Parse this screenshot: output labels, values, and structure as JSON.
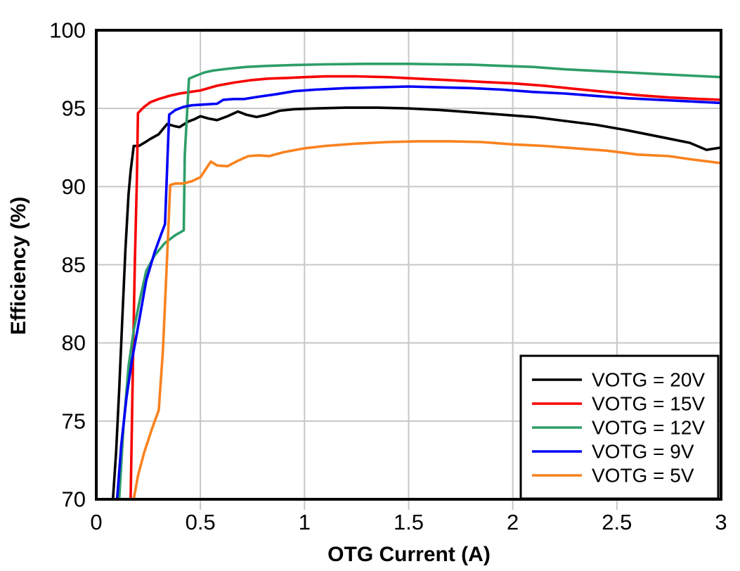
{
  "chart_data": {
    "type": "line",
    "title": "",
    "xlabel": "OTG Current (A)",
    "ylabel": "Efficiency (%)",
    "xlim": [
      0,
      3
    ],
    "ylim": [
      70,
      100
    ],
    "xticks": {
      "values": [
        0,
        0.5,
        1,
        1.5,
        2,
        2.5,
        3
      ],
      "labels": [
        "0",
        "0.5",
        "1",
        "1.5",
        "2",
        "2.5",
        "3"
      ]
    },
    "yticks": {
      "values": [
        70,
        75,
        80,
        85,
        90,
        95,
        100
      ],
      "labels": [
        "70",
        "75",
        "80",
        "85",
        "90",
        "95",
        "100"
      ]
    },
    "grid": true,
    "legend_position": "bottom-right",
    "style": {
      "background": "#FFFFFF",
      "frame_color": "#000000",
      "grid_color": "#C7C7C7",
      "tick_color": "#C7C7C7",
      "text_color": "#000000"
    },
    "series": [
      {
        "name": "VOTG = 20V",
        "color": "#000000",
        "points": [
          [
            0.08,
            70
          ],
          [
            0.095,
            73
          ],
          [
            0.11,
            77
          ],
          [
            0.125,
            81.5
          ],
          [
            0.14,
            86
          ],
          [
            0.155,
            89.5
          ],
          [
            0.165,
            91
          ],
          [
            0.18,
            92.6
          ],
          [
            0.205,
            92.6
          ],
          [
            0.23,
            92.8
          ],
          [
            0.26,
            93.05
          ],
          [
            0.3,
            93.35
          ],
          [
            0.34,
            94.0
          ],
          [
            0.38,
            93.85
          ],
          [
            0.4,
            93.8
          ],
          [
            0.44,
            94.15
          ],
          [
            0.47,
            94.3
          ],
          [
            0.5,
            94.5
          ],
          [
            0.54,
            94.35
          ],
          [
            0.58,
            94.25
          ],
          [
            0.63,
            94.5
          ],
          [
            0.68,
            94.8
          ],
          [
            0.72,
            94.6
          ],
          [
            0.77,
            94.45
          ],
          [
            0.82,
            94.6
          ],
          [
            0.88,
            94.85
          ],
          [
            0.95,
            94.95
          ],
          [
            1.05,
            95
          ],
          [
            1.2,
            95.05
          ],
          [
            1.35,
            95.05
          ],
          [
            1.5,
            95
          ],
          [
            1.65,
            94.9
          ],
          [
            1.8,
            94.75
          ],
          [
            1.95,
            94.6
          ],
          [
            2.1,
            94.45
          ],
          [
            2.25,
            94.2
          ],
          [
            2.4,
            93.95
          ],
          [
            2.55,
            93.6
          ],
          [
            2.7,
            93.2
          ],
          [
            2.85,
            92.8
          ],
          [
            2.93,
            92.35
          ],
          [
            3,
            92.5
          ]
        ]
      },
      {
        "name": "VOTG = 15V",
        "color": "#F70000",
        "points": [
          [
            0.165,
            70
          ],
          [
            0.175,
            78
          ],
          [
            0.185,
            85
          ],
          [
            0.195,
            90.5
          ],
          [
            0.2,
            94.7
          ],
          [
            0.23,
            95.1
          ],
          [
            0.26,
            95.4
          ],
          [
            0.3,
            95.6
          ],
          [
            0.35,
            95.8
          ],
          [
            0.4,
            95.95
          ],
          [
            0.45,
            96.05
          ],
          [
            0.5,
            96.15
          ],
          [
            0.58,
            96.45
          ],
          [
            0.66,
            96.65
          ],
          [
            0.74,
            96.8
          ],
          [
            0.82,
            96.9
          ],
          [
            0.92,
            96.95
          ],
          [
            1.0,
            97
          ],
          [
            1.1,
            97.05
          ],
          [
            1.25,
            97.05
          ],
          [
            1.4,
            97
          ],
          [
            1.55,
            96.9
          ],
          [
            1.7,
            96.8
          ],
          [
            1.85,
            96.7
          ],
          [
            2.0,
            96.6
          ],
          [
            2.15,
            96.45
          ],
          [
            2.3,
            96.25
          ],
          [
            2.45,
            96.05
          ],
          [
            2.6,
            95.85
          ],
          [
            2.75,
            95.7
          ],
          [
            2.9,
            95.6
          ],
          [
            3,
            95.55
          ]
        ]
      },
      {
        "name": "VOTG = 12V",
        "color": "#2D9E69",
        "points": [
          [
            0.11,
            70
          ],
          [
            0.13,
            74.5
          ],
          [
            0.155,
            78.5
          ],
          [
            0.18,
            80.8
          ],
          [
            0.21,
            82.8
          ],
          [
            0.24,
            84.6
          ],
          [
            0.28,
            85.6
          ],
          [
            0.33,
            86.4
          ],
          [
            0.38,
            86.9
          ],
          [
            0.42,
            87.2
          ],
          [
            0.425,
            92
          ],
          [
            0.445,
            96.9
          ],
          [
            0.48,
            97.1
          ],
          [
            0.52,
            97.3
          ],
          [
            0.56,
            97.42
          ],
          [
            0.64,
            97.55
          ],
          [
            0.72,
            97.65
          ],
          [
            0.82,
            97.72
          ],
          [
            0.95,
            97.78
          ],
          [
            1.1,
            97.82
          ],
          [
            1.3,
            97.85
          ],
          [
            1.5,
            97.85
          ],
          [
            1.65,
            97.82
          ],
          [
            1.8,
            97.8
          ],
          [
            1.95,
            97.72
          ],
          [
            2.1,
            97.65
          ],
          [
            2.25,
            97.5
          ],
          [
            2.4,
            97.4
          ],
          [
            2.55,
            97.3
          ],
          [
            2.7,
            97.2
          ],
          [
            2.85,
            97.1
          ],
          [
            3,
            97
          ]
        ]
      },
      {
        "name": "VOTG = 9V",
        "color": "#0000F5",
        "points": [
          [
            0.1,
            70
          ],
          [
            0.12,
            73.5
          ],
          [
            0.145,
            76.5
          ],
          [
            0.17,
            78.8
          ],
          [
            0.2,
            81
          ],
          [
            0.24,
            84
          ],
          [
            0.28,
            85.8
          ],
          [
            0.31,
            86.9
          ],
          [
            0.33,
            87.6
          ],
          [
            0.35,
            94.6
          ],
          [
            0.38,
            94.9
          ],
          [
            0.42,
            95.1
          ],
          [
            0.46,
            95.2
          ],
          [
            0.52,
            95.25
          ],
          [
            0.58,
            95.3
          ],
          [
            0.61,
            95.55
          ],
          [
            0.66,
            95.6
          ],
          [
            0.71,
            95.6
          ],
          [
            0.78,
            95.75
          ],
          [
            0.86,
            95.9
          ],
          [
            0.95,
            96.1
          ],
          [
            1.05,
            96.2
          ],
          [
            1.2,
            96.3
          ],
          [
            1.35,
            96.35
          ],
          [
            1.5,
            96.4
          ],
          [
            1.65,
            96.35
          ],
          [
            1.8,
            96.3
          ],
          [
            1.95,
            96.2
          ],
          [
            2.1,
            96.05
          ],
          [
            2.25,
            95.95
          ],
          [
            2.4,
            95.8
          ],
          [
            2.55,
            95.65
          ],
          [
            2.7,
            95.55
          ],
          [
            2.85,
            95.45
          ],
          [
            3,
            95.35
          ]
        ]
      },
      {
        "name": "VOTG = 5V",
        "color": "#F9821E",
        "points": [
          [
            0.18,
            70
          ],
          [
            0.2,
            71.5
          ],
          [
            0.23,
            73
          ],
          [
            0.27,
            74.6
          ],
          [
            0.3,
            75.7
          ],
          [
            0.32,
            79.5
          ],
          [
            0.34,
            85.5
          ],
          [
            0.355,
            90.1
          ],
          [
            0.38,
            90.2
          ],
          [
            0.42,
            90.2
          ],
          [
            0.46,
            90.35
          ],
          [
            0.5,
            90.6
          ],
          [
            0.55,
            91.6
          ],
          [
            0.58,
            91.35
          ],
          [
            0.63,
            91.3
          ],
          [
            0.68,
            91.65
          ],
          [
            0.73,
            91.95
          ],
          [
            0.78,
            92
          ],
          [
            0.83,
            91.95
          ],
          [
            0.9,
            92.2
          ],
          [
            1.0,
            92.45
          ],
          [
            1.1,
            92.6
          ],
          [
            1.25,
            92.75
          ],
          [
            1.4,
            92.85
          ],
          [
            1.55,
            92.9
          ],
          [
            1.7,
            92.9
          ],
          [
            1.85,
            92.85
          ],
          [
            2.0,
            92.7
          ],
          [
            2.15,
            92.6
          ],
          [
            2.3,
            92.45
          ],
          [
            2.45,
            92.3
          ],
          [
            2.6,
            92.05
          ],
          [
            2.75,
            91.95
          ],
          [
            2.85,
            91.75
          ],
          [
            3,
            91.5
          ]
        ]
      }
    ]
  }
}
